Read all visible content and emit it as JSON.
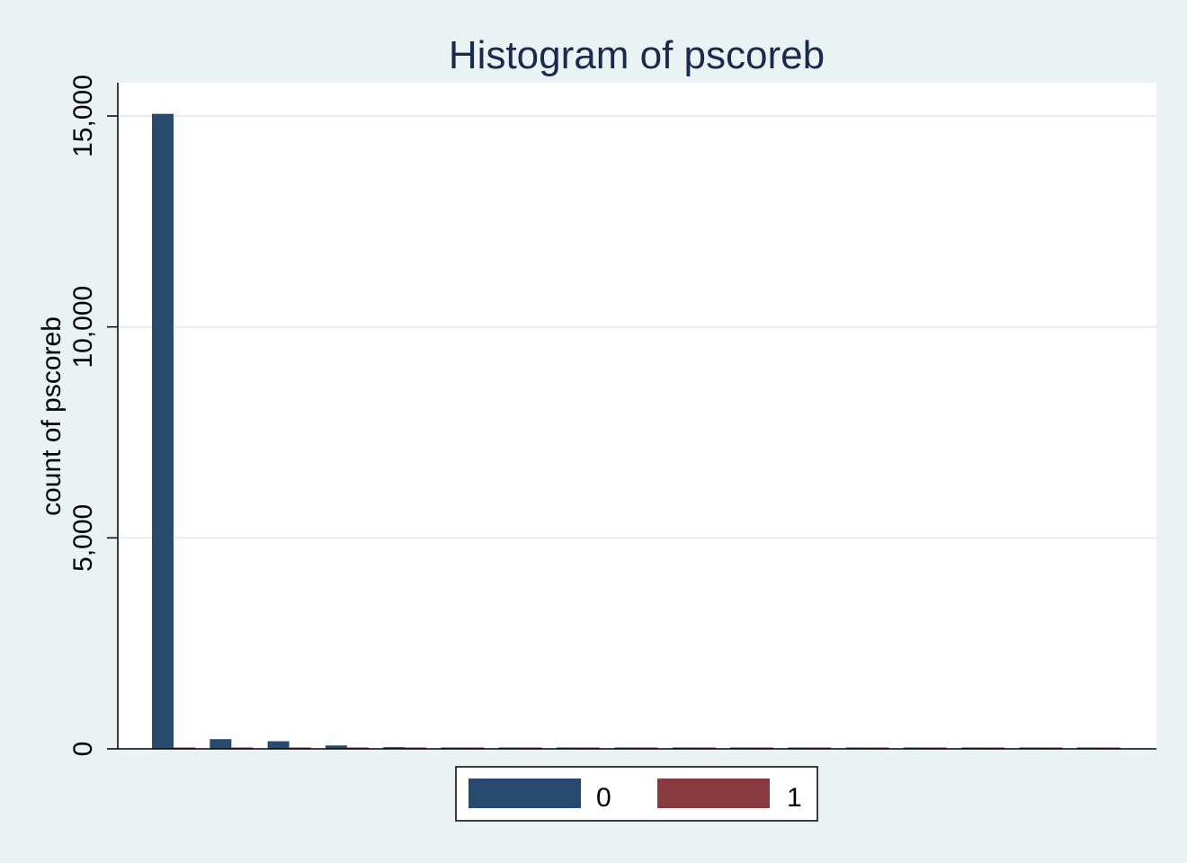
{
  "chart_data": {
    "type": "bar",
    "title": "Histogram of pscoreb",
    "xlabel": "",
    "ylabel": "count of pscoreb",
    "ylim": [
      0,
      15000
    ],
    "yticks": [
      {
        "value": 0,
        "label": "0"
      },
      {
        "value": 5000,
        "label": "5,000"
      },
      {
        "value": 10000,
        "label": "10,000"
      },
      {
        "value": 15000,
        "label": "15,000"
      }
    ],
    "grid": true,
    "legend_position": "bottom",
    "bins": 17,
    "series": [
      {
        "name": "0",
        "color": "#284a70",
        "values": [
          15050,
          230,
          180,
          80,
          40,
          20,
          10,
          8,
          30,
          6,
          5,
          5,
          4,
          4,
          3,
          3,
          0
        ]
      },
      {
        "name": "1",
        "color": "#8a3a3f",
        "values": [
          25,
          15,
          12,
          10,
          8,
          6,
          5,
          5,
          6,
          5,
          4,
          4,
          4,
          4,
          4,
          4,
          20
        ]
      }
    ]
  },
  "colors": {
    "background": "#eaf2f3",
    "plot_area": "#ffffff",
    "gridline": "#e3eeef",
    "title": "#1a2a4f"
  }
}
